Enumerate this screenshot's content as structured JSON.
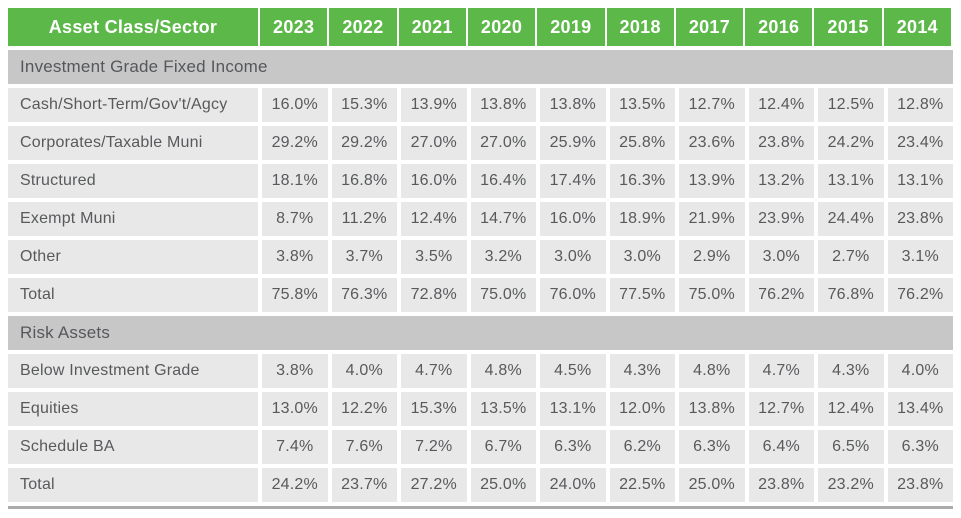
{
  "colors": {
    "header_green": "#5cb848",
    "section_gray": "#c7c7c7",
    "cell_gray": "#e8e8e8",
    "text_gray": "#58595b",
    "header_text": "#ffffff",
    "bottom_border": "#ababab"
  },
  "chart_data": {
    "type": "table",
    "title": "",
    "header": [
      "Asset Class/Sector",
      "2023",
      "2022",
      "2021",
      "2020",
      "2019",
      "2018",
      "2017",
      "2016",
      "2015",
      "2014"
    ],
    "sections": [
      {
        "title": "Investment Grade Fixed Income",
        "rows": [
          {
            "label": "Cash/Short-Term/Gov't/Agcy",
            "values": [
              "16.0%",
              "15.3%",
              "13.9%",
              "13.8%",
              "13.8%",
              "13.5%",
              "12.7%",
              "12.4%",
              "12.5%",
              "12.8%"
            ]
          },
          {
            "label": "Corporates/Taxable Muni",
            "values": [
              "29.2%",
              "29.2%",
              "27.0%",
              "27.0%",
              "25.9%",
              "25.8%",
              "23.6%",
              "23.8%",
              "24.2%",
              "23.4%"
            ]
          },
          {
            "label": "Structured",
            "values": [
              "18.1%",
              "16.8%",
              "16.0%",
              "16.4%",
              "17.4%",
              "16.3%",
              "13.9%",
              "13.2%",
              "13.1%",
              "13.1%"
            ]
          },
          {
            "label": "Exempt Muni",
            "values": [
              "8.7%",
              "11.2%",
              "12.4%",
              "14.7%",
              "16.0%",
              "18.9%",
              "21.9%",
              "23.9%",
              "24.4%",
              "23.8%"
            ]
          },
          {
            "label": "Other",
            "values": [
              "3.8%",
              "3.7%",
              "3.5%",
              "3.2%",
              "3.0%",
              "3.0%",
              "2.9%",
              "3.0%",
              "2.7%",
              "3.1%"
            ]
          },
          {
            "label": "Total",
            "values": [
              "75.8%",
              "76.3%",
              "72.8%",
              "75.0%",
              "76.0%",
              "77.5%",
              "75.0%",
              "76.2%",
              "76.8%",
              "76.2%"
            ]
          }
        ]
      },
      {
        "title": "Risk Assets",
        "rows": [
          {
            "label": "Below Investment Grade",
            "values": [
              "3.8%",
              "4.0%",
              "4.7%",
              "4.8%",
              "4.5%",
              "4.3%",
              "4.8%",
              "4.7%",
              "4.3%",
              "4.0%"
            ]
          },
          {
            "label": "Equities",
            "values": [
              "13.0%",
              "12.2%",
              "15.3%",
              "13.5%",
              "13.1%",
              "12.0%",
              "13.8%",
              "12.7%",
              "12.4%",
              "13.4%"
            ]
          },
          {
            "label": "Schedule BA",
            "values": [
              "7.4%",
              "7.6%",
              "7.2%",
              "6.7%",
              "6.3%",
              "6.2%",
              "6.3%",
              "6.4%",
              "6.5%",
              "6.3%"
            ]
          },
          {
            "label": "Total",
            "values": [
              "24.2%",
              "23.7%",
              "27.2%",
              "25.0%",
              "24.0%",
              "22.5%",
              "25.0%",
              "23.8%",
              "23.2%",
              "23.8%"
            ]
          }
        ]
      }
    ]
  }
}
